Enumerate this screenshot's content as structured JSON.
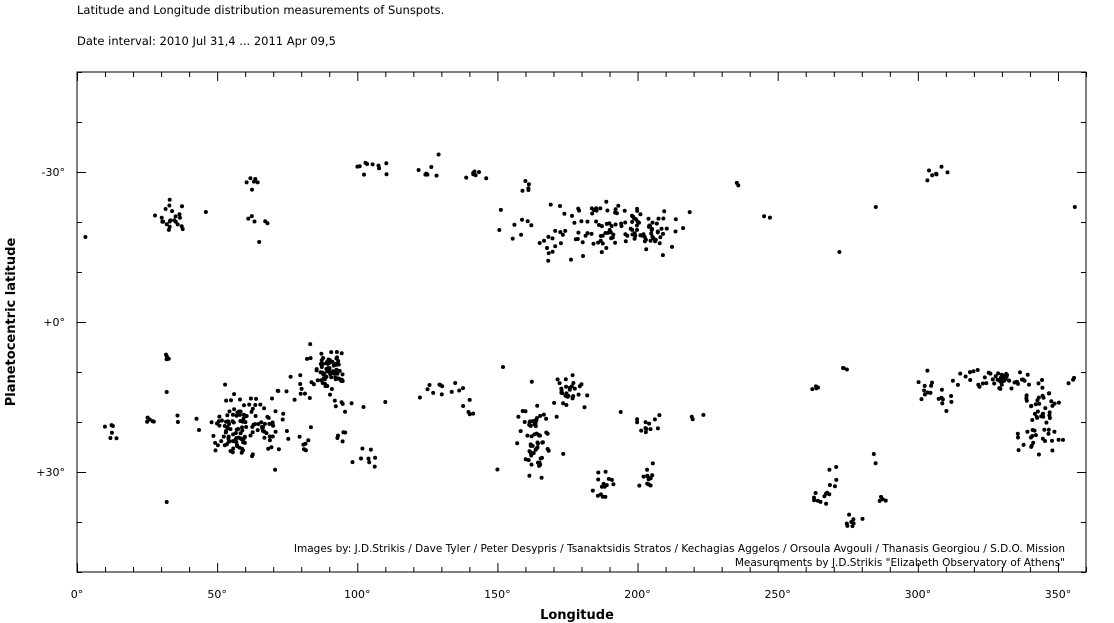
{
  "header": {
    "title": "Latitude and Longitude distribution measurements of  Sunspots.",
    "date_interval": "Date interval: 2010 Jul 31,4 ... 2011 Apr 09,5"
  },
  "credits": {
    "images_by": "Images by: J.D.Strikis  /  Dave Tyler  /  Peter Desypris  /  Tsanaktsidis Stratos  /  Kechagias Aggelos  /  Orsoula Avgouli  /  Thanasis Georgiou  /  S.D.O. Mission",
    "measurements_by": "Measurements by J.D.Strikis \"Elizabeth Observatory of Athens\""
  },
  "chart_data": {
    "type": "scatter",
    "title": "Latitude and Longitude distribution measurements of  Sunspots.",
    "subtitle": "Date interval: 2010 Jul 31,4 ... 2011 Apr 09,5",
    "xlabel": "Longitude",
    "ylabel": "Planetocentric latitude",
    "xlim": [
      0,
      360
    ],
    "ylim": [
      -50,
      50
    ],
    "y_inverted": true,
    "grid": false,
    "x_ticks": [
      0,
      50,
      100,
      150,
      200,
      250,
      300,
      350
    ],
    "x_tick_labels": [
      "0°",
      "50°",
      "100°",
      "150°",
      "200°",
      "250°",
      "300°",
      "350°"
    ],
    "y_ticks": [
      -30,
      0,
      30
    ],
    "y_tick_labels": [
      "-30°",
      "+0°",
      "+30°"
    ],
    "point_color": "#000000",
    "clusters": [
      {
        "lon": 3,
        "lat": -17,
        "sl": 0.5,
        "sb": 0.5,
        "n": 1
      },
      {
        "lon": 34,
        "lat": -20.5,
        "sl": 3,
        "sb": 1.5,
        "n": 22
      },
      {
        "lon": 46,
        "lat": -22,
        "sl": 0.5,
        "sb": 0.5,
        "n": 1
      },
      {
        "lon": 63,
        "lat": -28.5,
        "sl": 1.5,
        "sb": 1,
        "n": 6
      },
      {
        "lon": 66,
        "lat": -20.5,
        "sl": 3,
        "sb": 0.5,
        "n": 5
      },
      {
        "lon": 65,
        "lat": -16,
        "sl": 0.5,
        "sb": 0.5,
        "n": 1
      },
      {
        "lon": 106,
        "lat": -31,
        "sl": 3,
        "sb": 1,
        "n": 10
      },
      {
        "lon": 125,
        "lat": -30,
        "sl": 2,
        "sb": 0.5,
        "n": 6
      },
      {
        "lon": 129,
        "lat": -33.5,
        "sl": 0.5,
        "sb": 0.5,
        "n": 1
      },
      {
        "lon": 143,
        "lat": -29.5,
        "sl": 2,
        "sb": 0.5,
        "n": 7
      },
      {
        "lon": 160,
        "lat": -27,
        "sl": 1.5,
        "sb": 0.8,
        "n": 5
      },
      {
        "lon": 155,
        "lat": -20,
        "sl": 4,
        "sb": 2,
        "n": 8
      },
      {
        "lon": 170,
        "lat": -16,
        "sl": 3,
        "sb": 1.5,
        "n": 10
      },
      {
        "lon": 188,
        "lat": -19,
        "sl": 10,
        "sb": 3,
        "n": 80
      },
      {
        "lon": 205,
        "lat": -18,
        "sl": 5,
        "sb": 2,
        "n": 40
      },
      {
        "lon": 236,
        "lat": -28,
        "sl": 1,
        "sb": 0.3,
        "n": 2
      },
      {
        "lon": 246,
        "lat": -21,
        "sl": 1,
        "sb": 0.3,
        "n": 2
      },
      {
        "lon": 272,
        "lat": -14,
        "sl": 0.5,
        "sb": 0.5,
        "n": 1
      },
      {
        "lon": 285,
        "lat": -23,
        "sl": 0.5,
        "sb": 0.5,
        "n": 1
      },
      {
        "lon": 307,
        "lat": -29.5,
        "sl": 2,
        "sb": 1,
        "n": 7
      },
      {
        "lon": 356,
        "lat": -23,
        "sl": 0.5,
        "sb": 0.5,
        "n": 1
      },
      {
        "lon": 32,
        "lat": 7,
        "sl": 0.7,
        "sb": 0.5,
        "n": 4
      },
      {
        "lon": 32,
        "lat": 14,
        "sl": 0.5,
        "sb": 0.5,
        "n": 1
      },
      {
        "lon": 12,
        "lat": 22,
        "sl": 1,
        "sb": 1.5,
        "n": 6
      },
      {
        "lon": 26,
        "lat": 19.5,
        "sl": 6,
        "sb": 0.5,
        "n": 8
      },
      {
        "lon": 58,
        "lat": 21,
        "sl": 5,
        "sb": 2.5,
        "n": 80
      },
      {
        "lon": 68,
        "lat": 19,
        "sl": 3,
        "sb": 2,
        "n": 25
      },
      {
        "lon": 55,
        "lat": 24,
        "sl": 4,
        "sb": 2,
        "n": 20
      },
      {
        "lon": 80,
        "lat": 14,
        "sl": 4,
        "sb": 3,
        "n": 12
      },
      {
        "lon": 72,
        "lat": 23,
        "sl": 3,
        "sb": 2,
        "n": 6
      },
      {
        "lon": 83,
        "lat": 24,
        "sl": 3,
        "sb": 2,
        "n": 7
      },
      {
        "lon": 90,
        "lat": 9,
        "sl": 3,
        "sb": 1.8,
        "n": 70
      },
      {
        "lon": 95,
        "lat": 16,
        "sl": 3,
        "sb": 1.5,
        "n": 8
      },
      {
        "lon": 95,
        "lat": 23,
        "sl": 2,
        "sb": 1.5,
        "n": 5
      },
      {
        "lon": 104,
        "lat": 27,
        "sl": 2,
        "sb": 1,
        "n": 8
      },
      {
        "lon": 110,
        "lat": 16,
        "sl": 0.5,
        "sb": 0.5,
        "n": 1
      },
      {
        "lon": 32,
        "lat": 36,
        "sl": 0.5,
        "sb": 0.5,
        "n": 1
      },
      {
        "lon": 130,
        "lat": 14,
        "sl": 5,
        "sb": 1,
        "n": 12
      },
      {
        "lon": 140,
        "lat": 17,
        "sl": 1,
        "sb": 1,
        "n": 5
      },
      {
        "lon": 152,
        "lat": 9,
        "sl": 0.5,
        "sb": 0.5,
        "n": 1
      },
      {
        "lon": 164,
        "lat": 24,
        "sl": 3,
        "sb": 3,
        "n": 55
      },
      {
        "lon": 160,
        "lat": 19.5,
        "sl": 3,
        "sb": 0.5,
        "n": 6
      },
      {
        "lon": 175,
        "lat": 14,
        "sl": 3,
        "sb": 1.5,
        "n": 28
      },
      {
        "lon": 187,
        "lat": 32,
        "sl": 3,
        "sb": 1.8,
        "n": 15
      },
      {
        "lon": 150,
        "lat": 29.5,
        "sl": 0.5,
        "sb": 0.5,
        "n": 1
      },
      {
        "lon": 204,
        "lat": 20,
        "sl": 2,
        "sb": 1.5,
        "n": 12
      },
      {
        "lon": 204,
        "lat": 31,
        "sl": 2,
        "sb": 1.5,
        "n": 12
      },
      {
        "lon": 220,
        "lat": 19,
        "sl": 2,
        "sb": 1,
        "n": 3
      },
      {
        "lon": 194,
        "lat": 18,
        "sl": 0.5,
        "sb": 0.5,
        "n": 1
      },
      {
        "lon": 264,
        "lat": 13,
        "sl": 1.5,
        "sb": 0.5,
        "n": 4
      },
      {
        "lon": 273,
        "lat": 9.5,
        "sl": 1,
        "sb": 0.5,
        "n": 3
      },
      {
        "lon": 266,
        "lat": 35,
        "sl": 3,
        "sb": 1,
        "n": 10
      },
      {
        "lon": 271,
        "lat": 31,
        "sl": 1.5,
        "sb": 1.5,
        "n": 5
      },
      {
        "lon": 276,
        "lat": 40,
        "sl": 2,
        "sb": 1,
        "n": 8
      },
      {
        "lon": 285,
        "lat": 28,
        "sl": 0.5,
        "sb": 1,
        "n": 2
      },
      {
        "lon": 287,
        "lat": 36,
        "sl": 1,
        "sb": 0.8,
        "n": 4
      },
      {
        "lon": 304,
        "lat": 14,
        "sl": 3,
        "sb": 1.5,
        "n": 12
      },
      {
        "lon": 311,
        "lat": 16,
        "sl": 2,
        "sb": 1.5,
        "n": 6
      },
      {
        "lon": 330,
        "lat": 11.5,
        "sl": 6,
        "sb": 1,
        "n": 50
      },
      {
        "lon": 343,
        "lat": 17,
        "sl": 4,
        "sb": 2,
        "n": 30
      },
      {
        "lon": 340,
        "lat": 23,
        "sl": 5,
        "sb": 1.5,
        "n": 25
      },
      {
        "lon": 355,
        "lat": 11.5,
        "sl": 1,
        "sb": 0.5,
        "n": 3
      }
    ]
  }
}
